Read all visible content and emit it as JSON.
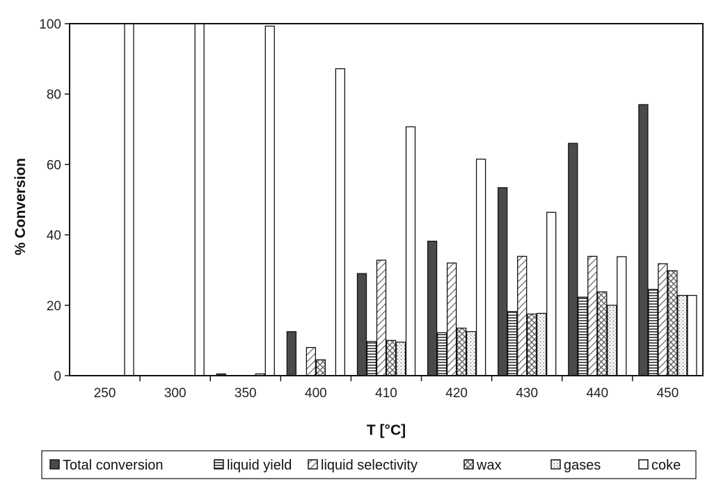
{
  "chart_data": {
    "type": "bar",
    "xlabel": "T [°C]",
    "ylabel": "% Conversion",
    "ylim": [
      0,
      100
    ],
    "yticks": [
      0,
      20,
      40,
      60,
      80,
      100
    ],
    "categories": [
      "250",
      "300",
      "350",
      "400",
      "410",
      "420",
      "430",
      "440",
      "450"
    ],
    "grid": false,
    "legend_position": "bottom",
    "series": [
      {
        "name": "Total conversion",
        "pattern": "dark",
        "color": "#444444",
        "values": [
          0,
          0,
          0.5,
          12.5,
          29,
          38.2,
          53.4,
          66,
          77
        ]
      },
      {
        "name": "liquid yield",
        "pattern": "horizontal-lines",
        "color": "#777777",
        "values": [
          0,
          0,
          0,
          0,
          9.7,
          12.2,
          18.2,
          22.3,
          24.5
        ]
      },
      {
        "name": "liquid selectivity",
        "pattern": "diagonal-lines",
        "color": "#888888",
        "values": [
          0,
          0,
          0,
          8,
          32.8,
          32,
          33.9,
          33.9,
          31.8
        ]
      },
      {
        "name": "wax",
        "pattern": "crosshatch",
        "color": "#888888",
        "values": [
          0,
          0,
          0,
          4.5,
          10,
          13.5,
          17.5,
          23.8,
          29.8
        ]
      },
      {
        "name": "gases",
        "pattern": "dots",
        "color": "#999999",
        "values": [
          0,
          0,
          0.5,
          0,
          9.5,
          12.5,
          17.7,
          20,
          22.8
        ]
      },
      {
        "name": "coke",
        "pattern": "white",
        "color": "#ffffff",
        "values": [
          100,
          100,
          99.3,
          87.2,
          70.7,
          61.5,
          46.4,
          33.8,
          22.8
        ]
      }
    ]
  }
}
